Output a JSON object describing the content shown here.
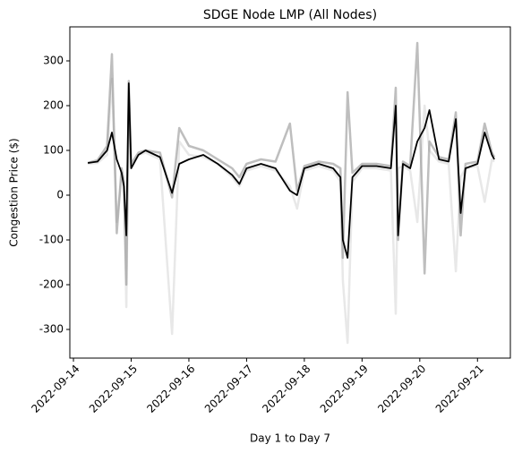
{
  "chart_data": {
    "type": "line",
    "title": "SDGE Node LMP (All Nodes)",
    "x_label": "Day 1 to Day 7",
    "y_label": "Congestion Price ($)",
    "x": [
      "2022-09-14T06:00",
      "2022-09-14T10:00",
      "2022-09-14T14:00",
      "2022-09-14T16:00",
      "2022-09-14T18:00",
      "2022-09-14T20:00",
      "2022-09-14T21:00",
      "2022-09-14T22:00",
      "2022-09-14T23:00",
      "2022-09-15T00:00",
      "2022-09-15T03:00",
      "2022-09-15T06:00",
      "2022-09-15T12:00",
      "2022-09-15T17:00",
      "2022-09-15T20:00",
      "2022-09-16T00:00",
      "2022-09-16T06:00",
      "2022-09-16T12:00",
      "2022-09-16T18:00",
      "2022-09-16T21:00",
      "2022-09-17T00:00",
      "2022-09-17T06:00",
      "2022-09-17T12:00",
      "2022-09-17T18:00",
      "2022-09-17T21:00",
      "2022-09-18T00:00",
      "2022-09-18T06:00",
      "2022-09-18T12:00",
      "2022-09-18T15:00",
      "2022-09-18T16:00",
      "2022-09-18T18:00",
      "2022-09-18T20:00",
      "2022-09-19T00:00",
      "2022-09-19T06:00",
      "2022-09-19T12:00",
      "2022-09-19T14:00",
      "2022-09-19T15:00",
      "2022-09-19T17:00",
      "2022-09-19T20:00",
      "2022-09-19T23:00",
      "2022-09-20T02:00",
      "2022-09-20T04:00",
      "2022-09-20T08:00",
      "2022-09-20T12:00",
      "2022-09-20T15:00",
      "2022-09-20T17:00",
      "2022-09-20T19:00",
      "2022-09-21T00:00",
      "2022-09-21T03:00",
      "2022-09-21T06:00",
      "2022-09-21T07:00"
    ],
    "series": [
      {
        "color": "#cccccc",
        "opacity": 0.45,
        "values": [
          70,
          72,
          90,
          260,
          -60,
          40,
          20,
          -250,
          200,
          60,
          90,
          95,
          80,
          -310,
          120,
          90,
          85,
          70,
          40,
          20,
          55,
          65,
          55,
          20,
          -30,
          55,
          65,
          55,
          30,
          -190,
          -330,
          30,
          60,
          60,
          55,
          -265,
          60,
          65,
          55,
          -60,
          200,
          100,
          75,
          70,
          -170,
          40,
          60,
          65,
          -15,
          80,
          75
        ]
      },
      {
        "color": "#888888",
        "opacity": 0.55,
        "values": [
          72,
          78,
          110,
          315,
          -85,
          60,
          30,
          -200,
          255,
          70,
          95,
          100,
          95,
          -5,
          150,
          110,
          100,
          80,
          60,
          40,
          70,
          80,
          75,
          160,
          10,
          65,
          75,
          70,
          60,
          -140,
          230,
          50,
          70,
          70,
          65,
          240,
          -100,
          75,
          65,
          340,
          -175,
          120,
          85,
          80,
          185,
          -90,
          70,
          75,
          160,
          95,
          85
        ]
      },
      {
        "color": "#000000",
        "opacity": 1,
        "values": [
          72,
          75,
          100,
          140,
          80,
          50,
          20,
          -90,
          250,
          60,
          90,
          100,
          85,
          5,
          70,
          80,
          90,
          70,
          45,
          25,
          60,
          70,
          60,
          10,
          0,
          60,
          70,
          60,
          40,
          -100,
          -140,
          40,
          65,
          65,
          60,
          200,
          -90,
          70,
          60,
          120,
          150,
          190,
          80,
          75,
          170,
          -40,
          60,
          70,
          140,
          90,
          80
        ]
      }
    ],
    "xlim": [
      "2022-09-13T22:30",
      "2022-09-21T13:40"
    ],
    "xticks": [
      "2022-09-14",
      "2022-09-15",
      "2022-09-16",
      "2022-09-17",
      "2022-09-18",
      "2022-09-19",
      "2022-09-20",
      "2022-09-21"
    ],
    "ylim": [
      -364,
      376
    ],
    "yticks": [
      -300,
      -200,
      -100,
      0,
      100,
      200,
      300
    ],
    "grid": false
  }
}
